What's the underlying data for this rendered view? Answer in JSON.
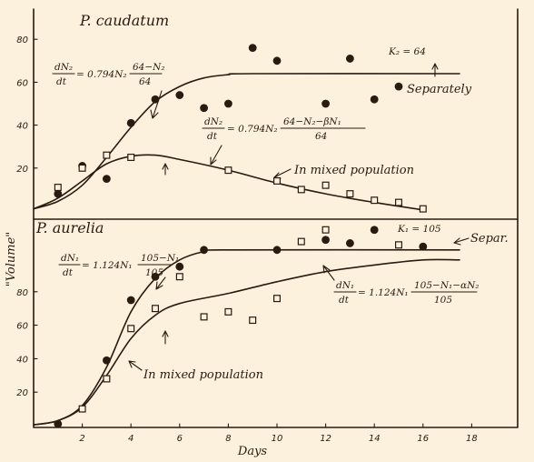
{
  "chart_data": [
    {
      "type": "scatter",
      "title": "P. caudatum",
      "xlabel": "Days",
      "ylabel": "\"Volume\"",
      "ylim": [
        0,
        85
      ],
      "xlim": [
        0,
        18
      ],
      "yticks": [
        "20",
        "40",
        "60",
        "80"
      ],
      "series": [
        {
          "name": "Separately",
          "marker": "filled-circle",
          "points": [
            [
              1,
              8
            ],
            [
              2,
              21
            ],
            [
              3,
              15
            ],
            [
              4,
              41
            ],
            [
              5,
              52
            ],
            [
              6,
              54
            ],
            [
              7,
              48
            ],
            [
              8,
              50
            ],
            [
              9,
              76
            ],
            [
              10,
              70
            ],
            [
              12,
              50
            ],
            [
              13,
              71
            ],
            [
              14,
              52
            ],
            [
              15,
              58
            ]
          ]
        },
        {
          "name": "In mixed population",
          "marker": "open-square",
          "points": [
            [
              1,
              11
            ],
            [
              2,
              20
            ],
            [
              3,
              26
            ],
            [
              4,
              25
            ],
            [
              8,
              19
            ],
            [
              10,
              14
            ],
            [
              11,
              10
            ],
            [
              12,
              12
            ],
            [
              13,
              8
            ],
            [
              14,
              5
            ],
            [
              15,
              4
            ],
            [
              16,
              1
            ]
          ]
        }
      ],
      "curves": {
        "separately": {
          "label": "K₂ = 64",
          "points": [
            [
              0,
              1
            ],
            [
              1,
              4.5
            ],
            [
              2,
              12
            ],
            [
              3,
              25
            ],
            [
              4,
              39
            ],
            [
              5,
              51
            ],
            [
              6,
              58
            ],
            [
              7,
              62
            ],
            [
              8,
              63.5
            ],
            [
              9,
              64
            ],
            [
              17.5,
              64
            ]
          ]
        },
        "mixed": {
          "points": [
            [
              0,
              1
            ],
            [
              1,
              6
            ],
            [
              2,
              14
            ],
            [
              3,
              22
            ],
            [
              4,
              25.5
            ],
            [
              5,
              26
            ],
            [
              6,
              24
            ],
            [
              8,
              19
            ],
            [
              10,
              13
            ],
            [
              12,
              8
            ],
            [
              14,
              4
            ],
            [
              16,
              0.5
            ]
          ]
        }
      },
      "annotations": {
        "eq_separate": {
          "lhs_num": "dN₂",
          "lhs_den": "dt",
          "rhs": "= 0.794N₂",
          "frac_num": "64−N₂",
          "frac_den": "64"
        },
        "eq_mixed": {
          "lhs_num": "dN₂",
          "lhs_den": "dt",
          "rhs": "= 0.794N₂",
          "frac_num": "64−N₂−βN₁",
          "frac_den": "64"
        },
        "k_label": "K₂ = 64",
        "separately_label": "Separately",
        "mixed_label": "In mixed population"
      }
    },
    {
      "type": "scatter",
      "title": "P. aurelia",
      "xlabel": "Days",
      "ylabel": "\"Volume\"",
      "ylim": [
        0,
        120
      ],
      "xlim": [
        0,
        18
      ],
      "xticks": [
        "2",
        "4",
        "6",
        "8",
        "10",
        "12",
        "14",
        "16",
        "18"
      ],
      "yticks": [
        "20",
        "40",
        "60",
        "80"
      ],
      "series": [
        {
          "name": "Separately",
          "marker": "filled-circle",
          "points": [
            [
              1,
              1
            ],
            [
              3,
              39
            ],
            [
              4,
              75
            ],
            [
              5,
              89
            ],
            [
              6,
              95
            ],
            [
              7,
              105
            ],
            [
              10,
              105
            ],
            [
              12,
              111
            ],
            [
              13,
              109
            ],
            [
              14,
              117
            ],
            [
              16,
              107
            ]
          ]
        },
        {
          "name": "In mixed population",
          "marker": "open-square",
          "points": [
            [
              2,
              10
            ],
            [
              3,
              28
            ],
            [
              4,
              58
            ],
            [
              5,
              70
            ],
            [
              6,
              89
            ],
            [
              7,
              65
            ],
            [
              8,
              68
            ],
            [
              9,
              63
            ],
            [
              10,
              76
            ],
            [
              11,
              110
            ],
            [
              12,
              117
            ],
            [
              15,
              108
            ]
          ]
        }
      ],
      "curves": {
        "separately": {
          "label": "K₁ = 105",
          "points": [
            [
              0,
              0.5
            ],
            [
              1,
              3
            ],
            [
              2,
              12
            ],
            [
              3,
              35
            ],
            [
              4,
              68
            ],
            [
              5,
              88
            ],
            [
              6,
              99
            ],
            [
              7,
              104
            ],
            [
              8,
              105
            ],
            [
              17.5,
              105
            ]
          ]
        },
        "mixed": {
          "points": [
            [
              0,
              0.5
            ],
            [
              1,
              3
            ],
            [
              2,
              11
            ],
            [
              3,
              30
            ],
            [
              4,
              52
            ],
            [
              5,
              66
            ],
            [
              6,
              73
            ],
            [
              8,
              79
            ],
            [
              10,
              86
            ],
            [
              12,
              92
            ],
            [
              14,
              96
            ],
            [
              16,
              99
            ],
            [
              17.5,
              99
            ]
          ]
        }
      },
      "annotations": {
        "eq_separate": {
          "lhs_num": "dN₁",
          "lhs_den": "dt",
          "rhs": "= 1.124N₁",
          "frac_num": "105−N₁",
          "frac_den": "105"
        },
        "eq_mixed": {
          "lhs_num": "dN₁",
          "lhs_den": "dt",
          "rhs": "= 1.124N₁",
          "frac_num": "105−N₁−αN₂",
          "frac_den": "105"
        },
        "k_label": "K₁ = 105",
        "separately_label": "Separ.",
        "mixed_label": "In mixed population"
      }
    }
  ]
}
